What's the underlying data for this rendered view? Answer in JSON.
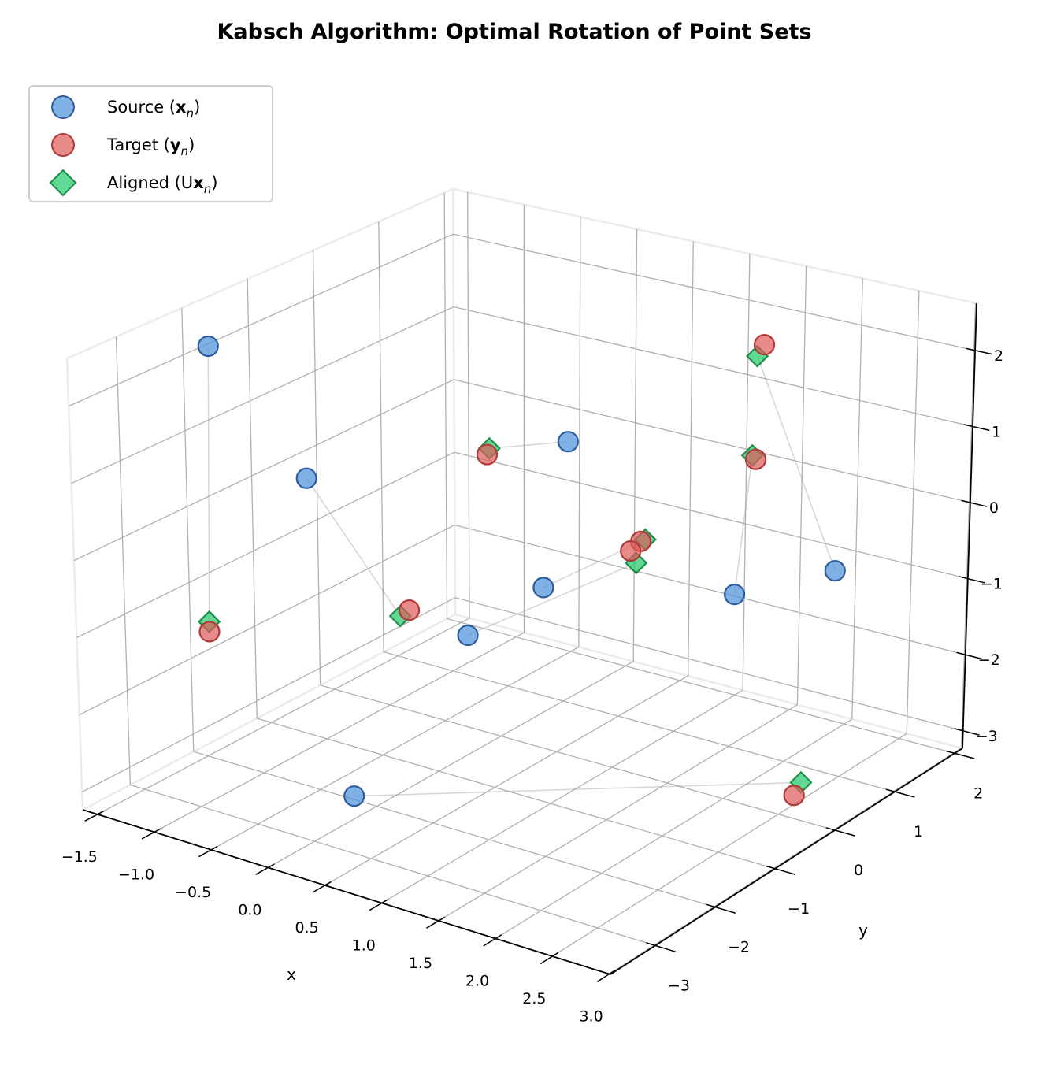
{
  "chart_data": {
    "type": "scatter3d",
    "title": "Kabsch Algorithm: Optimal Rotation of Point Sets",
    "xlabel": "x",
    "ylabel": "y",
    "zlabel": "",
    "xlim": [
      -1.63,
      3.01
    ],
    "ylim": [
      -3.75,
      2.13
    ],
    "zlim": [
      -3.23,
      2.62
    ],
    "xticks": [
      -1.5,
      -1.0,
      -0.5,
      0.0,
      0.5,
      1.0,
      1.5,
      2.0,
      2.5,
      3.0
    ],
    "xticklabels": [
      "−1.5",
      "−1.0",
      "−0.5",
      "0.0",
      "0.5",
      "1.0",
      "1.5",
      "2.0",
      "2.5",
      "3.0"
    ],
    "yticks": [
      -3,
      -2,
      -1,
      0,
      1,
      2
    ],
    "yticklabels": [
      "−3",
      "−2",
      "−1",
      "0",
      "1",
      "2"
    ],
    "zticks": [
      -3,
      -2,
      -1,
      0,
      1,
      2
    ],
    "zticklabels": [
      "−3",
      "−2",
      "−1",
      "0",
      "1",
      "2"
    ],
    "grid": true,
    "legend_position": "top-left",
    "view": {
      "elevation": 30,
      "azimuth": -60
    },
    "series": [
      {
        "name": "Source (xn)",
        "marker": "circle",
        "color": "#4A90D9",
        "edge_color": "#2E5E9E",
        "points": [
          [
            -1.25,
            -2.28,
            2.37
          ],
          [
            -0.42,
            -2.28,
            0.97
          ],
          [
            0.23,
            0.66,
            0.47
          ],
          [
            0.83,
            -0.81,
            -0.58
          ],
          [
            0.16,
            -0.81,
            -1.47
          ],
          [
            1.72,
            0.66,
            -0.99
          ],
          [
            2.61,
            0.66,
            -0.35
          ],
          [
            0.61,
            -3.46,
            -2.18
          ]
        ]
      },
      {
        "name": "Target (yn)",
        "marker": "circle",
        "color": "#E05A5A",
        "edge_color": "#B03A3A",
        "points": [
          [
            -1.3,
            -2.28,
            -1.39
          ],
          [
            -0.36,
            -0.81,
            -1.35
          ],
          [
            -0.49,
            0.66,
            0.03
          ],
          [
            0.88,
            0.66,
            -0.61
          ],
          [
            0.79,
            0.66,
            -0.77
          ],
          [
            1.89,
            0.66,
            0.84
          ],
          [
            1.95,
            0.66,
            2.36
          ],
          [
            2.6,
            0.07,
            -2.98
          ]
        ]
      },
      {
        "name": "Aligned (Uxn)",
        "marker": "diamond",
        "color": "#2ECC71",
        "edge_color": "#1E8F46",
        "points": [
          [
            -1.3,
            -2.28,
            -1.26
          ],
          [
            -0.44,
            -0.81,
            -1.46
          ],
          [
            -0.47,
            0.66,
            0.12
          ],
          [
            0.92,
            0.66,
            -0.57
          ],
          [
            0.84,
            0.66,
            -0.91
          ],
          [
            1.86,
            0.66,
            0.88
          ],
          [
            1.89,
            0.66,
            2.19
          ],
          [
            2.66,
            0.07,
            -2.79
          ]
        ]
      }
    ],
    "connections": {
      "from": "Source (xn)",
      "to": "Aligned (Uxn)",
      "color": "#999999"
    }
  },
  "legend": {
    "items": [
      {
        "text": "Source (",
        "bold": "x",
        "sub": "n",
        "close": ")"
      },
      {
        "text": "Target (",
        "bold": "y",
        "sub": "n",
        "close": ")"
      },
      {
        "text": "Aligned (U",
        "bold": "x",
        "sub": "n",
        "close": ")"
      }
    ]
  }
}
